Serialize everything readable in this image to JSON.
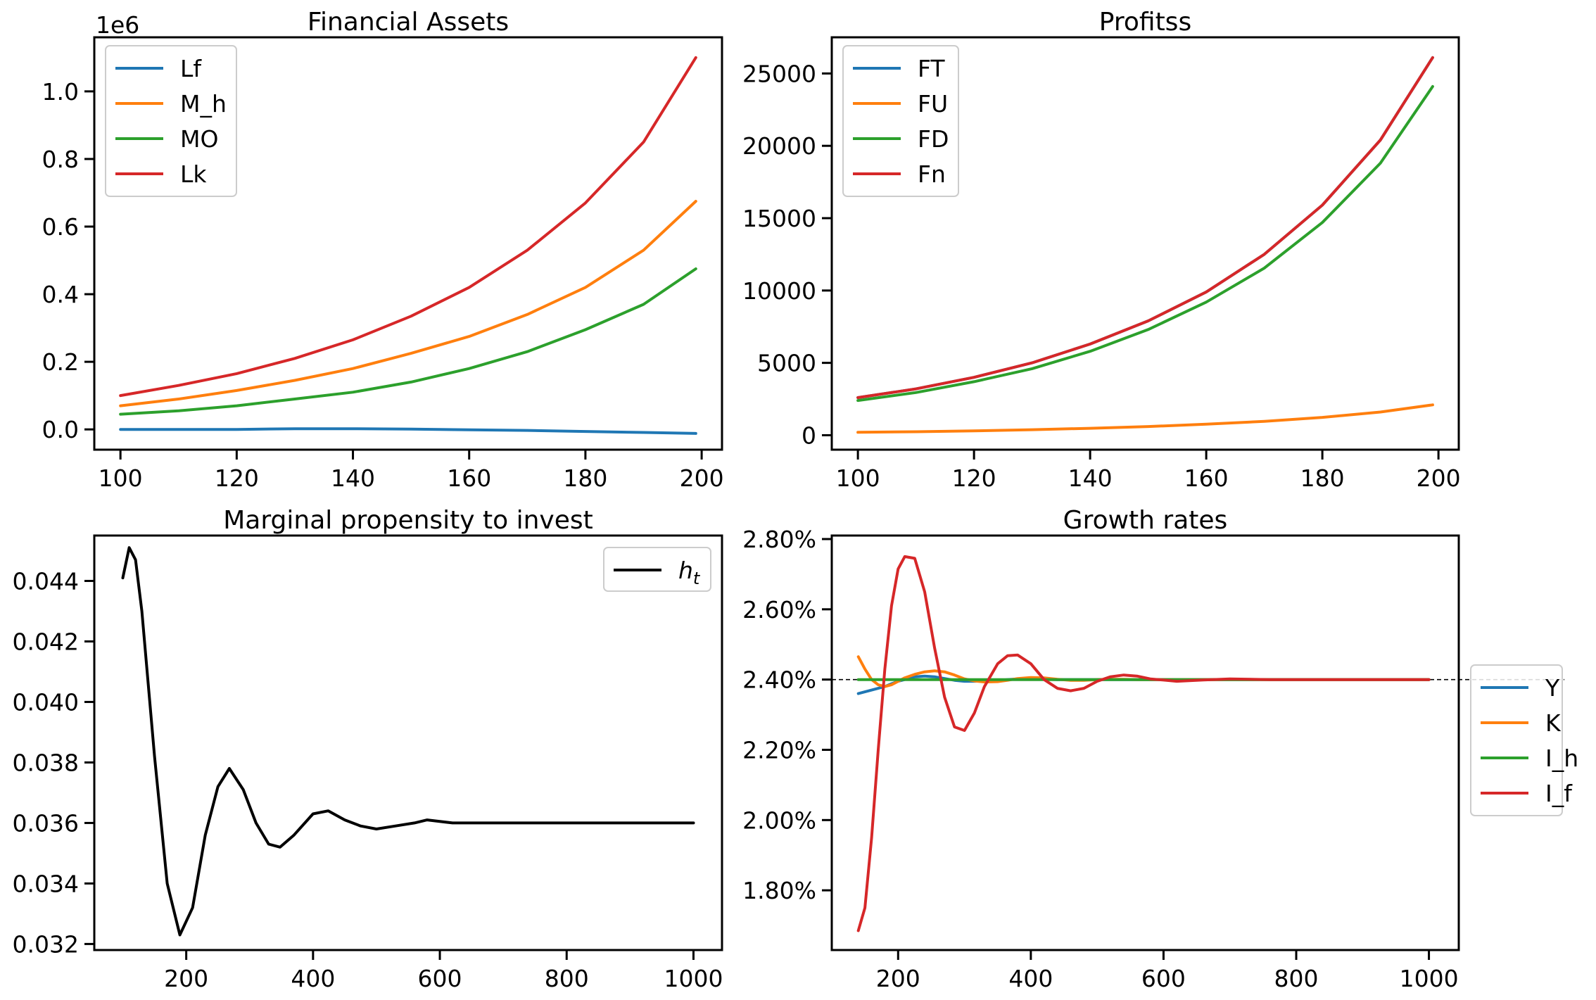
{
  "chart_data": [
    {
      "type": "line",
      "title": "Financial Assets",
      "xlabel": "",
      "ylabel": "",
      "offset_text": "1e6",
      "xlim": [
        95.5,
        203.5
      ],
      "ylim": [
        -0.06,
        1.16
      ],
      "xticks": [
        100,
        120,
        140,
        160,
        180,
        200
      ],
      "xtick_labels": [
        "100",
        "120",
        "140",
        "160",
        "180",
        "200"
      ],
      "yticks": [
        0.0,
        0.2,
        0.4,
        0.6,
        0.8,
        1.0
      ],
      "ytick_labels": [
        "0.0",
        "0.2",
        "0.4",
        "0.6",
        "0.8",
        "1.0"
      ],
      "grid": false,
      "legend_position": "upper-left",
      "x": [
        100,
        110,
        120,
        130,
        140,
        150,
        160,
        170,
        180,
        190,
        199
      ],
      "series": [
        {
          "name": "Lf",
          "color": "#1f77b4",
          "values": [
            0.0,
            0.0,
            0.0,
            0.002,
            0.002,
            0.001,
            -0.001,
            -0.003,
            -0.006,
            -0.009,
            -0.012
          ]
        },
        {
          "name": "M_h",
          "color": "#ff7f0e",
          "values": [
            0.07,
            0.09,
            0.115,
            0.145,
            0.18,
            0.225,
            0.275,
            0.34,
            0.42,
            0.53,
            0.675
          ]
        },
        {
          "name": "MO",
          "color": "#2ca02c",
          "values": [
            0.045,
            0.055,
            0.07,
            0.09,
            0.11,
            0.14,
            0.18,
            0.23,
            0.295,
            0.37,
            0.475
          ]
        },
        {
          "name": "Lk",
          "color": "#d62728",
          "values": [
            0.1,
            0.13,
            0.165,
            0.21,
            0.265,
            0.335,
            0.42,
            0.53,
            0.67,
            0.85,
            1.1
          ]
        }
      ]
    },
    {
      "type": "line",
      "title": "Profitss",
      "xlabel": "",
      "ylabel": "",
      "xlim": [
        95.5,
        203.5
      ],
      "ylim": [
        -1000,
        27500
      ],
      "xticks": [
        100,
        120,
        140,
        160,
        180,
        200
      ],
      "xtick_labels": [
        "100",
        "120",
        "140",
        "160",
        "180",
        "200"
      ],
      "yticks": [
        0,
        5000,
        10000,
        15000,
        20000,
        25000
      ],
      "ytick_labels": [
        "0",
        "5000",
        "10000",
        "15000",
        "20000",
        "25000"
      ],
      "grid": false,
      "legend_position": "upper-left",
      "x": [
        100,
        110,
        120,
        130,
        140,
        150,
        160,
        170,
        180,
        190,
        199
      ],
      "series": [
        {
          "name": "FT",
          "color": "#1f77b4",
          "values": [
            2600,
            3200,
            4000,
            5000,
            6300,
            7900,
            9900,
            12500,
            15900,
            20400,
            26100
          ]
        },
        {
          "name": "FU",
          "color": "#ff7f0e",
          "values": [
            200,
            240,
            300,
            380,
            480,
            600,
            760,
            960,
            1230,
            1600,
            2100
          ]
        },
        {
          "name": "FD",
          "color": "#2ca02c",
          "values": [
            2400,
            2950,
            3700,
            4600,
            5800,
            7300,
            9200,
            11550,
            14700,
            18800,
            24100
          ]
        },
        {
          "name": "Fn",
          "color": "#d62728",
          "values": [
            2600,
            3200,
            4000,
            5000,
            6300,
            7900,
            9900,
            12500,
            15900,
            20400,
            26100
          ]
        }
      ]
    },
    {
      "type": "line",
      "title": "Marginal propensity to invest",
      "xlabel": "",
      "ylabel": "",
      "xlim": [
        55,
        1045
      ],
      "ylim": [
        0.0318,
        0.0455
      ],
      "xticks": [
        200,
        400,
        600,
        800,
        1000
      ],
      "xtick_labels": [
        "200",
        "400",
        "600",
        "800",
        "1000"
      ],
      "yticks": [
        0.032,
        0.034,
        0.036,
        0.038,
        0.04,
        0.042,
        0.044
      ],
      "ytick_labels": [
        "0.032",
        "0.034",
        "0.036",
        "0.038",
        "0.040",
        "0.042",
        "0.044"
      ],
      "grid": false,
      "legend_position": "upper-right",
      "x": [
        100,
        110,
        120,
        130,
        150,
        170,
        190,
        210,
        230,
        250,
        268,
        290,
        310,
        330,
        348,
        370,
        400,
        424,
        450,
        475,
        500,
        530,
        560,
        580,
        620,
        660,
        700,
        740,
        800,
        900,
        1000
      ],
      "series": [
        {
          "name": "h_t",
          "color": "#000000",
          "values": [
            0.0441,
            0.0451,
            0.0447,
            0.043,
            0.0382,
            0.034,
            0.0323,
            0.0332,
            0.0356,
            0.0372,
            0.0378,
            0.0371,
            0.036,
            0.0353,
            0.0352,
            0.0356,
            0.0363,
            0.0364,
            0.0361,
            0.0359,
            0.0358,
            0.0359,
            0.036,
            0.0361,
            0.036,
            0.036,
            0.036,
            0.036,
            0.036,
            0.036,
            0.036
          ]
        }
      ]
    },
    {
      "type": "line",
      "title": "Growth rates",
      "xlabel": "",
      "ylabel": "",
      "xlim": [
        100,
        1045
      ],
      "ylim": [
        0.0163,
        0.0281
      ],
      "xticks": [
        200,
        400,
        600,
        800,
        1000
      ],
      "xtick_labels": [
        "200",
        "400",
        "600",
        "800",
        "1000"
      ],
      "yticks": [
        0.018,
        0.02,
        0.022,
        0.024,
        0.026,
        0.028
      ],
      "ytick_labels": [
        "1.80%",
        "2.00%",
        "2.20%",
        "2.40%",
        "2.60%",
        "2.80%"
      ],
      "grid": false,
      "legend_position": "outside-right",
      "reference_line": {
        "y": 0.024,
        "style": "dashed",
        "color": "#000000"
      },
      "x": [
        140,
        150,
        160,
        170,
        180,
        190,
        200,
        210,
        225,
        240,
        255,
        270,
        285,
        300,
        315,
        330,
        350,
        365,
        380,
        400,
        420,
        440,
        460,
        480,
        500,
        520,
        540,
        560,
        580,
        620,
        660,
        700,
        760,
        850,
        1000
      ],
      "series": [
        {
          "name": "Y",
          "color": "#1f77b4",
          "values": [
            0.0236,
            0.02365,
            0.0237,
            0.02375,
            0.0238,
            0.02388,
            0.02395,
            0.024,
            0.02408,
            0.0241,
            0.02408,
            0.02403,
            0.02398,
            0.02395,
            0.02395,
            0.02396,
            0.02398,
            0.024,
            0.02402,
            0.02402,
            0.02401,
            0.024,
            0.024,
            0.024,
            0.024,
            0.024,
            0.024,
            0.024,
            0.024,
            0.024,
            0.024,
            0.024,
            0.024,
            0.024,
            0.024
          ]
        },
        {
          "name": "K",
          "color": "#ff7f0e",
          "values": [
            0.02465,
            0.0243,
            0.024,
            0.02385,
            0.0238,
            0.02385,
            0.02395,
            0.02405,
            0.02415,
            0.02422,
            0.02425,
            0.02422,
            0.02413,
            0.02402,
            0.02396,
            0.02393,
            0.02394,
            0.02398,
            0.02403,
            0.02406,
            0.02405,
            0.02401,
            0.02398,
            0.02398,
            0.024,
            0.02401,
            0.02401,
            0.024,
            0.024,
            0.024,
            0.024,
            0.024,
            0.024,
            0.024,
            0.024
          ]
        },
        {
          "name": "I_h",
          "color": "#2ca02c",
          "values": [
            0.024,
            0.024,
            0.024,
            0.024,
            0.024,
            0.024,
            0.024,
            0.024,
            0.024,
            0.024,
            0.024,
            0.024,
            0.024,
            0.024,
            0.024,
            0.024,
            0.024,
            0.024,
            0.024,
            0.024,
            0.024,
            0.024,
            0.024,
            0.024,
            0.024,
            0.024,
            0.024,
            0.024,
            0.024,
            0.024,
            0.024,
            0.024,
            0.024,
            0.024,
            0.024
          ]
        },
        {
          "name": "I_f",
          "color": "#d62728",
          "values": [
            0.01685,
            0.0175,
            0.0195,
            0.022,
            0.0243,
            0.0261,
            0.02715,
            0.0275,
            0.02745,
            0.0265,
            0.0249,
            0.0235,
            0.02265,
            0.02255,
            0.02305,
            0.0238,
            0.02445,
            0.02468,
            0.0247,
            0.02445,
            0.024,
            0.02375,
            0.02368,
            0.02375,
            0.02395,
            0.02408,
            0.02413,
            0.0241,
            0.02402,
            0.02395,
            0.02399,
            0.02402,
            0.024,
            0.024,
            0.024
          ]
        }
      ]
    }
  ]
}
